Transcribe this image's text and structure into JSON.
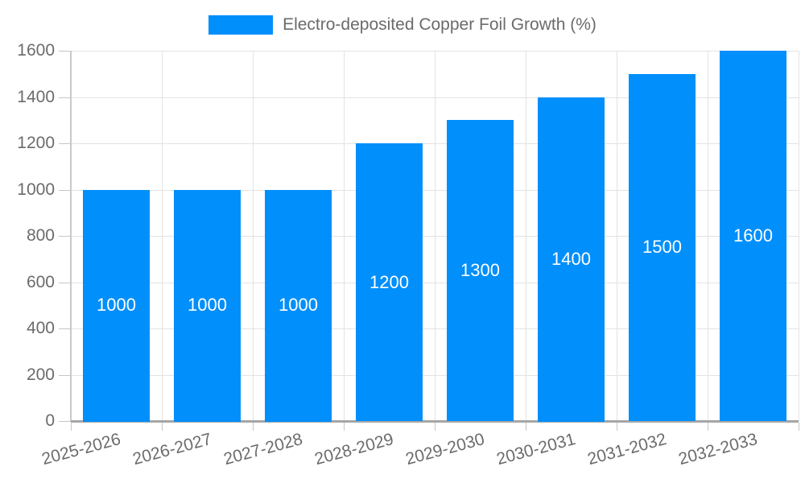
{
  "chart_data": {
    "type": "bar",
    "title": "Electro-deposited Copper Foil Growth (%)",
    "categories": [
      "2025-2026",
      "2026-2027",
      "2027-2028",
      "2028-2029",
      "2029-2030",
      "2030-2031",
      "2031-2032",
      "2032-2033"
    ],
    "values": [
      1000,
      1000,
      1000,
      1200,
      1300,
      1400,
      1500,
      1600
    ],
    "bar_labels": [
      "1000",
      "1000",
      "1000",
      "1200",
      "1300",
      "1400",
      "1500",
      "1600"
    ],
    "ylim": [
      0,
      1600
    ],
    "yticks": [
      0,
      200,
      400,
      600,
      800,
      1000,
      1200,
      1400,
      1600
    ],
    "ytick_labels": [
      "0",
      "200",
      "400",
      "600",
      "800",
      "1000",
      "1200",
      "1400",
      "1600"
    ],
    "xlabel": "",
    "ylabel": "",
    "grid": true,
    "legend_position": "top",
    "colors": {
      "bar": "#008FFB",
      "bar_label_text": "#ffffff",
      "axis_text": "#6b6b6b",
      "legend_text": "#6b6b6b",
      "gridline": "#e3e3e3",
      "axis_line": "#c9c9c9",
      "baseline": "#a6a6a6",
      "tick": "#c6c6c6",
      "background": "#ffffff"
    }
  }
}
